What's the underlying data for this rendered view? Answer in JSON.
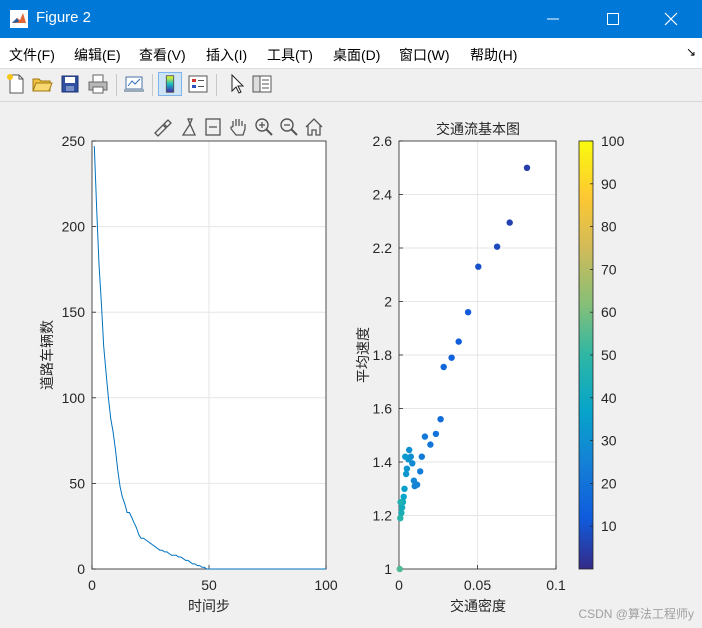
{
  "window": {
    "title": "Figure 2"
  },
  "menu": [
    {
      "label": "文件(F)"
    },
    {
      "label": "编辑(E)"
    },
    {
      "label": "查看(V)"
    },
    {
      "label": "插入(I)"
    },
    {
      "label": "工具(T)"
    },
    {
      "label": "桌面(D)"
    },
    {
      "label": "窗口(W)"
    },
    {
      "label": "帮助(H)"
    }
  ],
  "toolbar_icons": [
    "new-figure-icon",
    "open-file-icon",
    "save-icon",
    "print-icon",
    "link-plot-icon",
    "insert-colorbar-icon",
    "insert-legend-icon",
    "pointer-icon",
    "property-inspector-icon"
  ],
  "axes_toolbar_icons": [
    "brush-icon",
    "data-tips-icon",
    "restore-view-icon",
    "pan-hand-icon",
    "zoom-in-icon",
    "zoom-out-icon",
    "home-icon"
  ],
  "colors": {
    "titlebar": "#0078d7",
    "line": "#0072bd"
  },
  "watermark": "CSDN @算法工程师y",
  "chart_data": [
    {
      "type": "line",
      "title": "",
      "xlabel": "时间步",
      "ylabel": "道路车辆数",
      "xlim": [
        0,
        100
      ],
      "ylim": [
        0,
        250
      ],
      "xticks": [
        0,
        50,
        100
      ],
      "yticks": [
        0,
        50,
        100,
        150,
        200,
        250
      ],
      "grid": true,
      "series": [
        {
          "x": [
            1,
            2,
            3,
            4,
            5,
            6,
            7,
            8,
            9,
            10,
            11,
            12,
            13,
            14,
            15,
            16,
            17,
            18,
            19,
            20,
            21,
            22,
            23,
            24,
            25,
            26,
            27,
            28,
            29,
            30,
            31,
            32,
            33,
            34,
            35,
            36,
            37,
            38,
            39,
            40,
            41,
            42,
            43,
            44,
            45,
            46,
            47,
            48,
            49,
            50,
            55,
            60,
            70,
            80,
            90,
            100
          ],
          "y": [
            247,
            210,
            178,
            155,
            130,
            115,
            100,
            88,
            80,
            70,
            58,
            48,
            42,
            38,
            33,
            33,
            30,
            27,
            24,
            20,
            18,
            18,
            17,
            16,
            15,
            14,
            13,
            12,
            11,
            11,
            10,
            10,
            9,
            8,
            8,
            8,
            7,
            7,
            6,
            5,
            5,
            4,
            3,
            3,
            2,
            2,
            1,
            1,
            0,
            0,
            0,
            0,
            0,
            0,
            0,
            0
          ]
        }
      ]
    },
    {
      "type": "scatter",
      "title": "交通流基本图",
      "xlabel": "交通密度",
      "ylabel": "平均速度",
      "xlim": [
        0,
        0.1
      ],
      "ylim": [
        1,
        2.6
      ],
      "xticks": [
        0,
        0.05,
        0.1
      ],
      "xtick_labels": [
        "0",
        "0.05",
        "0.1"
      ],
      "yticks": [
        1,
        1.2,
        1.4,
        1.6,
        1.8,
        2,
        2.2,
        2.4,
        2.6
      ],
      "grid": true,
      "colorbar": {
        "min": 0,
        "max": 100,
        "ticks": [
          10,
          20,
          30,
          40,
          50,
          60,
          70,
          80,
          90,
          100
        ],
        "colormap": "parula"
      },
      "points": [
        {
          "x": 0.0815,
          "y": 2.5,
          "c": 5
        },
        {
          "x": 0.0705,
          "y": 2.295,
          "c": 6
        },
        {
          "x": 0.0625,
          "y": 2.205,
          "c": 8
        },
        {
          "x": 0.0505,
          "y": 2.13,
          "c": 10
        },
        {
          "x": 0.044,
          "y": 1.96,
          "c": 12
        },
        {
          "x": 0.038,
          "y": 1.85,
          "c": 13
        },
        {
          "x": 0.0335,
          "y": 1.79,
          "c": 15
        },
        {
          "x": 0.0285,
          "y": 1.755,
          "c": 16
        },
        {
          "x": 0.0265,
          "y": 1.56,
          "c": 18
        },
        {
          "x": 0.0235,
          "y": 1.505,
          "c": 20
        },
        {
          "x": 0.02,
          "y": 1.465,
          "c": 21
        },
        {
          "x": 0.0165,
          "y": 1.495,
          "c": 22
        },
        {
          "x": 0.0145,
          "y": 1.42,
          "c": 23
        },
        {
          "x": 0.0135,
          "y": 1.365,
          "c": 24
        },
        {
          "x": 0.0115,
          "y": 1.315,
          "c": 25
        },
        {
          "x": 0.01,
          "y": 1.31,
          "c": 26
        },
        {
          "x": 0.0095,
          "y": 1.33,
          "c": 27
        },
        {
          "x": 0.0085,
          "y": 1.395,
          "c": 28
        },
        {
          "x": 0.0075,
          "y": 1.42,
          "c": 29
        },
        {
          "x": 0.0065,
          "y": 1.445,
          "c": 30
        },
        {
          "x": 0.006,
          "y": 1.41,
          "c": 31
        },
        {
          "x": 0.005,
          "y": 1.375,
          "c": 32
        },
        {
          "x": 0.0045,
          "y": 1.355,
          "c": 33
        },
        {
          "x": 0.004,
          "y": 1.42,
          "c": 34
        },
        {
          "x": 0.0035,
          "y": 1.3,
          "c": 36
        },
        {
          "x": 0.003,
          "y": 1.27,
          "c": 38
        },
        {
          "x": 0.0025,
          "y": 1.25,
          "c": 40
        },
        {
          "x": 0.002,
          "y": 1.23,
          "c": 42
        },
        {
          "x": 0.0015,
          "y": 1.21,
          "c": 44
        },
        {
          "x": 0.001,
          "y": 1.25,
          "c": 46
        },
        {
          "x": 0.0008,
          "y": 1.19,
          "c": 48
        },
        {
          "x": 0.0005,
          "y": 1.0,
          "c": 55
        }
      ]
    }
  ]
}
